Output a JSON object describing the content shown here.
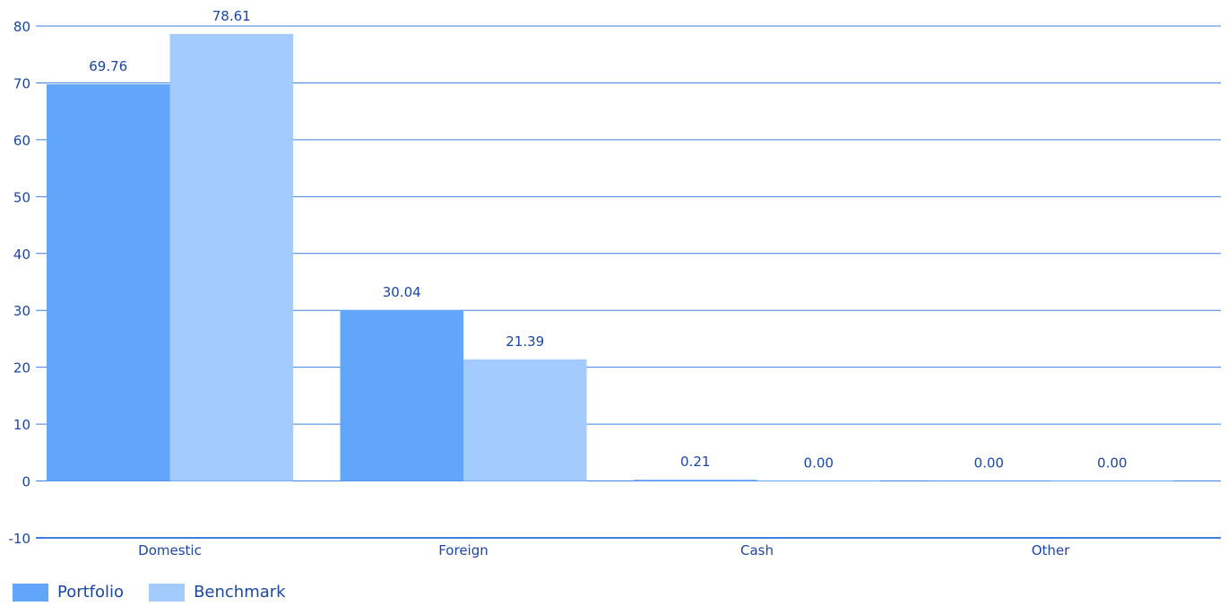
{
  "chart_data": {
    "type": "bar",
    "title": "",
    "xlabel": "",
    "ylabel": "",
    "categories": [
      "Domestic",
      "Foreign",
      "Cash",
      "Other"
    ],
    "series": [
      {
        "name": "Portfolio",
        "values": [
          69.76,
          30.04,
          0.21,
          0.0
        ],
        "labels": [
          "69.76",
          "30.04",
          "0.21",
          "0.00"
        ]
      },
      {
        "name": "Benchmark",
        "values": [
          78.61,
          21.39,
          0.0,
          0.0
        ],
        "labels": [
          "78.61",
          "21.39",
          "0.00",
          "0.00"
        ]
      }
    ],
    "ylim": [
      -10,
      80
    ],
    "yticks": [
      -10,
      0,
      10,
      20,
      30,
      40,
      50,
      60,
      70,
      80
    ],
    "grid": true,
    "legend_position": "bottom-left"
  },
  "colors": {
    "portfolio": "#62a6fb",
    "benchmark": "#a3cbfd",
    "grid": "#3d80e0",
    "axis": "#3d80e0",
    "text": "#1c46a5"
  }
}
